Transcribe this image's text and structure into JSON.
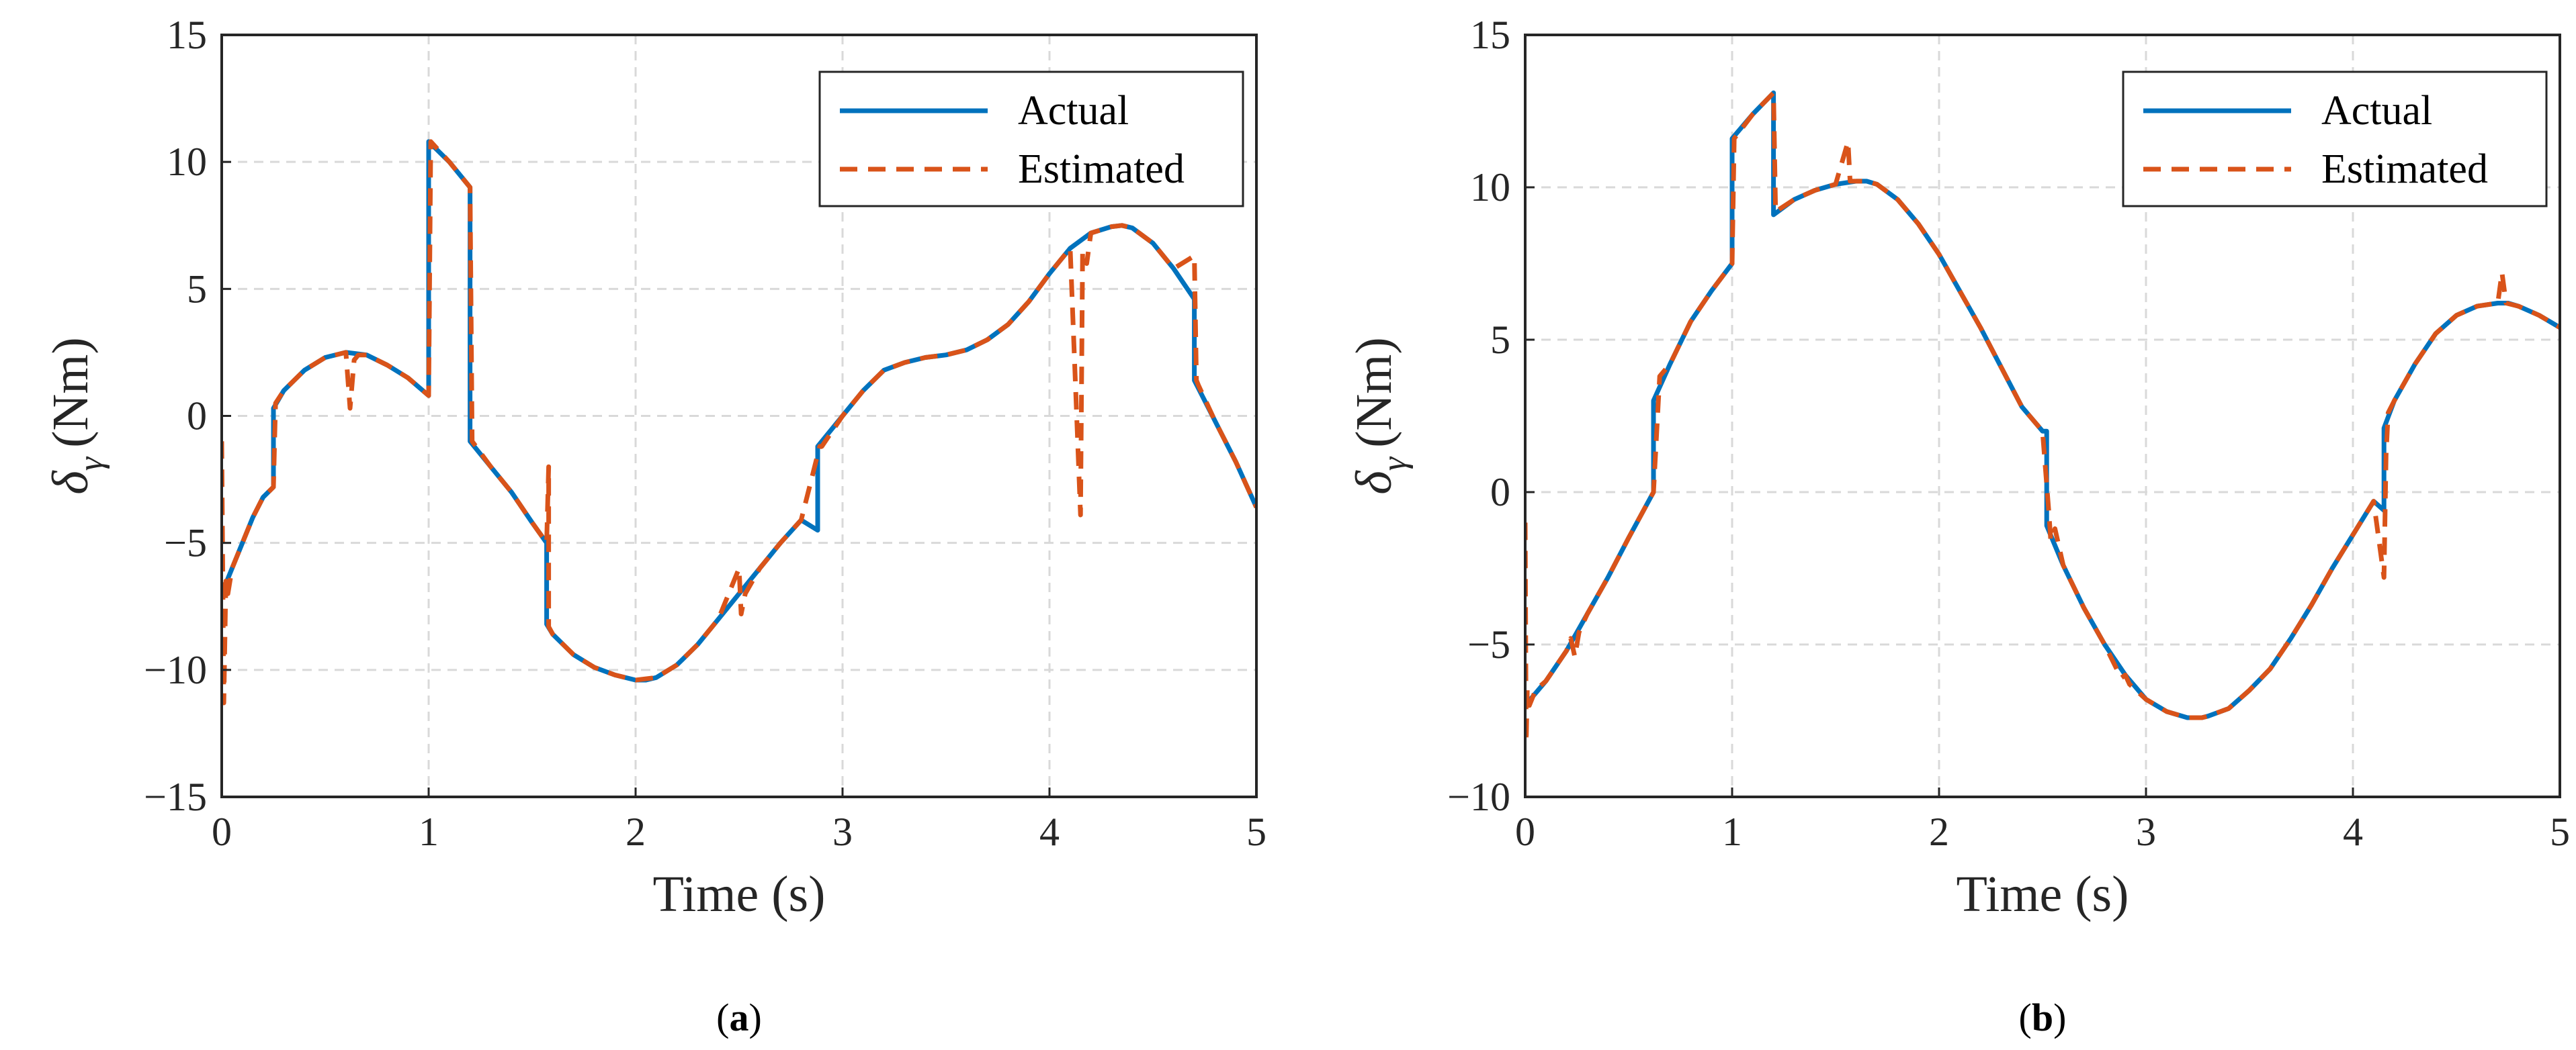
{
  "colors": {
    "actual": "#0072BD",
    "estimated": "#D95319"
  },
  "chart_data": [
    {
      "type": "line",
      "panel_label": "a",
      "xlabel": "Time (s)",
      "ylabel_symbol": "δ",
      "ylabel_subscript": "γ",
      "ylabel_unit": "(Nm)",
      "xlim": [
        0,
        5
      ],
      "ylim": [
        -15,
        15
      ],
      "x_ticks": [
        "0",
        "1",
        "2",
        "3",
        "4",
        "5"
      ],
      "y_ticks": [
        "−15",
        "−10",
        "−5",
        "0",
        "5",
        "10",
        "15"
      ],
      "grid": true,
      "legend_position": "top-right",
      "series": [
        {
          "name": "Actual",
          "x": [
            0,
            0.05,
            0.1,
            0.15,
            0.2,
            0.25,
            0.25,
            0.3,
            0.4,
            0.5,
            0.6,
            0.7,
            0.8,
            0.9,
            1.0,
            1.0,
            1.1,
            1.2,
            1.2,
            1.3,
            1.4,
            1.5,
            1.57,
            1.57,
            1.6,
            1.7,
            1.8,
            1.9,
            2.0,
            2.05,
            2.1,
            2.2,
            2.3,
            2.4,
            2.5,
            2.6,
            2.7,
            2.8,
            2.88,
            2.88,
            3.0,
            3.1,
            3.2,
            3.3,
            3.4,
            3.5,
            3.6,
            3.7,
            3.8,
            3.9,
            4.0,
            4.1,
            4.2,
            4.3,
            4.35,
            4.4,
            4.5,
            4.6,
            4.7,
            4.7,
            4.8,
            4.9,
            5.0
          ],
          "y": [
            -7.0,
            -6.0,
            -5.0,
            -4.0,
            -3.2,
            -2.8,
            0.3,
            1.0,
            1.8,
            2.3,
            2.5,
            2.4,
            2.0,
            1.5,
            0.8,
            10.8,
            10.0,
            9.0,
            -1.0,
            -2.0,
            -3.0,
            -4.2,
            -5.0,
            -8.2,
            -8.6,
            -9.4,
            -9.9,
            -10.2,
            -10.4,
            -10.4,
            -10.3,
            -9.8,
            -9.0,
            -8.0,
            -7.0,
            -6.0,
            -5.0,
            -4.1,
            -4.5,
            -1.2,
            0.0,
            1.0,
            1.8,
            2.1,
            2.3,
            2.4,
            2.6,
            3.0,
            3.6,
            4.5,
            5.6,
            6.6,
            7.2,
            7.45,
            7.5,
            7.4,
            6.8,
            5.8,
            4.6,
            1.4,
            -0.2,
            -1.8,
            -3.6
          ]
        },
        {
          "name": "Estimated",
          "x": [
            0,
            0.01,
            0.02,
            0.03,
            0.05,
            0.1,
            0.15,
            0.2,
            0.25,
            0.26,
            0.3,
            0.4,
            0.5,
            0.6,
            0.62,
            0.64,
            0.66,
            0.7,
            0.8,
            0.9,
            1.0,
            1.01,
            1.1,
            1.2,
            1.21,
            1.3,
            1.4,
            1.5,
            1.57,
            1.58,
            1.58,
            1.6,
            1.7,
            1.8,
            1.9,
            2.0,
            2.1,
            2.2,
            2.3,
            2.4,
            2.5,
            2.51,
            2.53,
            2.6,
            2.7,
            2.8,
            2.89,
            2.9,
            3.0,
            3.1,
            3.2,
            3.3,
            3.4,
            3.5,
            3.6,
            3.7,
            3.8,
            3.9,
            4.0,
            4.1,
            4.15,
            4.16,
            4.18,
            4.2,
            4.3,
            4.35,
            4.4,
            4.5,
            4.6,
            4.7,
            4.71,
            4.72,
            4.8,
            4.9,
            5.0
          ],
          "y": [
            -1.0,
            -11.3,
            -6.5,
            -7.0,
            -6.0,
            -5.0,
            -4.0,
            -3.2,
            -2.8,
            0.5,
            1.0,
            1.8,
            2.3,
            2.5,
            0.3,
            2.2,
            2.4,
            2.4,
            2.0,
            1.5,
            0.8,
            10.8,
            10.0,
            9.0,
            -1.0,
            -2.0,
            -3.0,
            -4.2,
            -5.0,
            -2.0,
            -8.3,
            -8.6,
            -9.4,
            -9.9,
            -10.2,
            -10.4,
            -10.3,
            -9.8,
            -9.0,
            -8.0,
            -6.0,
            -7.8,
            -7.0,
            -6.0,
            -5.0,
            -4.1,
            -1.2,
            -1.2,
            0.0,
            1.0,
            1.8,
            2.1,
            2.3,
            2.4,
            2.6,
            3.0,
            3.6,
            4.5,
            5.6,
            6.6,
            -3.9,
            6.5,
            6.0,
            7.2,
            7.45,
            7.5,
            7.4,
            6.8,
            5.8,
            6.3,
            1.4,
            1.2,
            -0.2,
            -1.8,
            -3.6
          ]
        }
      ]
    },
    {
      "type": "line",
      "panel_label": "b",
      "xlabel": "Time (s)",
      "ylabel_symbol": "δ",
      "ylabel_subscript": "γ",
      "ylabel_unit": "(Nm)",
      "xlim": [
        0,
        5
      ],
      "ylim": [
        -10,
        15
      ],
      "x_ticks": [
        "0",
        "1",
        "2",
        "3",
        "4",
        "5"
      ],
      "y_ticks": [
        "−10",
        "−5",
        "0",
        "5",
        "10",
        "15"
      ],
      "grid": true,
      "legend_position": "top-right",
      "series": [
        {
          "name": "Actual",
          "x": [
            0,
            0.1,
            0.2,
            0.3,
            0.4,
            0.5,
            0.62,
            0.62,
            0.7,
            0.8,
            0.9,
            1.0,
            1.0,
            1.1,
            1.2,
            1.2,
            1.3,
            1.4,
            1.5,
            1.6,
            1.65,
            1.7,
            1.8,
            1.9,
            2.0,
            2.1,
            2.2,
            2.3,
            2.4,
            2.5,
            2.52,
            2.52,
            2.6,
            2.7,
            2.8,
            2.9,
            3.0,
            3.1,
            3.2,
            3.27,
            3.3,
            3.4,
            3.5,
            3.6,
            3.7,
            3.8,
            3.9,
            4.0,
            4.1,
            4.15,
            4.15,
            4.2,
            4.3,
            4.4,
            4.5,
            4.6,
            4.7,
            4.75,
            4.8,
            4.9,
            5.0
          ],
          "y": [
            -7.0,
            -6.2,
            -5.2,
            -4.0,
            -2.8,
            -1.5,
            0.0,
            3.0,
            4.2,
            5.6,
            6.6,
            7.5,
            11.6,
            12.4,
            13.1,
            9.1,
            9.6,
            9.9,
            10.1,
            10.2,
            10.2,
            10.1,
            9.6,
            8.8,
            7.8,
            6.6,
            5.4,
            4.1,
            2.8,
            2.0,
            2.0,
            -1.1,
            -2.4,
            -3.8,
            -5.0,
            -6.0,
            -6.8,
            -7.2,
            -7.4,
            -7.4,
            -7.35,
            -7.1,
            -6.5,
            -5.8,
            -4.8,
            -3.7,
            -2.5,
            -1.4,
            -0.3,
            -0.6,
            2.1,
            3.0,
            4.2,
            5.2,
            5.8,
            6.1,
            6.2,
            6.2,
            6.1,
            5.8,
            5.4
          ]
        },
        {
          "name": "Estimated",
          "x": [
            0,
            0.005,
            0.01,
            0.02,
            0.05,
            0.1,
            0.2,
            0.22,
            0.24,
            0.26,
            0.3,
            0.4,
            0.5,
            0.62,
            0.65,
            0.7,
            0.8,
            0.9,
            1.0,
            1.01,
            1.1,
            1.2,
            1.21,
            1.3,
            1.4,
            1.5,
            1.56,
            1.57,
            1.6,
            1.65,
            1.7,
            1.8,
            1.9,
            2.0,
            2.1,
            2.2,
            2.3,
            2.4,
            2.5,
            2.53,
            2.54,
            2.56,
            2.6,
            2.7,
            2.8,
            2.88,
            2.9,
            2.92,
            3.0,
            3.1,
            3.2,
            3.27,
            3.3,
            3.4,
            3.5,
            3.6,
            3.7,
            3.8,
            3.9,
            4.0,
            4.1,
            4.15,
            4.16,
            4.17,
            4.2,
            4.3,
            4.4,
            4.5,
            4.6,
            4.7,
            4.72,
            4.74,
            4.8,
            4.9,
            5.0
          ],
          "y": [
            -1.0,
            -8.2,
            -6.5,
            -7.0,
            -6.5,
            -6.2,
            -5.2,
            -4.8,
            -5.4,
            -4.6,
            -4.0,
            -2.8,
            -1.5,
            0.0,
            3.8,
            4.2,
            5.6,
            6.6,
            7.5,
            11.6,
            12.4,
            13.1,
            9.2,
            9.6,
            9.9,
            10.1,
            11.5,
            10.2,
            10.2,
            10.2,
            10.1,
            9.6,
            8.8,
            7.8,
            6.6,
            5.4,
            4.1,
            2.8,
            2.0,
            -0.6,
            -1.6,
            -1.2,
            -2.4,
            -3.8,
            -5.0,
            -6.1,
            -6.0,
            -6.3,
            -6.8,
            -7.2,
            -7.4,
            -7.4,
            -7.35,
            -7.1,
            -6.5,
            -5.8,
            -4.8,
            -3.7,
            -2.5,
            -1.4,
            -0.3,
            -2.8,
            1.2,
            2.6,
            3.0,
            4.2,
            5.2,
            5.8,
            6.1,
            6.2,
            7.2,
            6.2,
            6.1,
            5.8,
            5.4
          ]
        }
      ]
    }
  ]
}
